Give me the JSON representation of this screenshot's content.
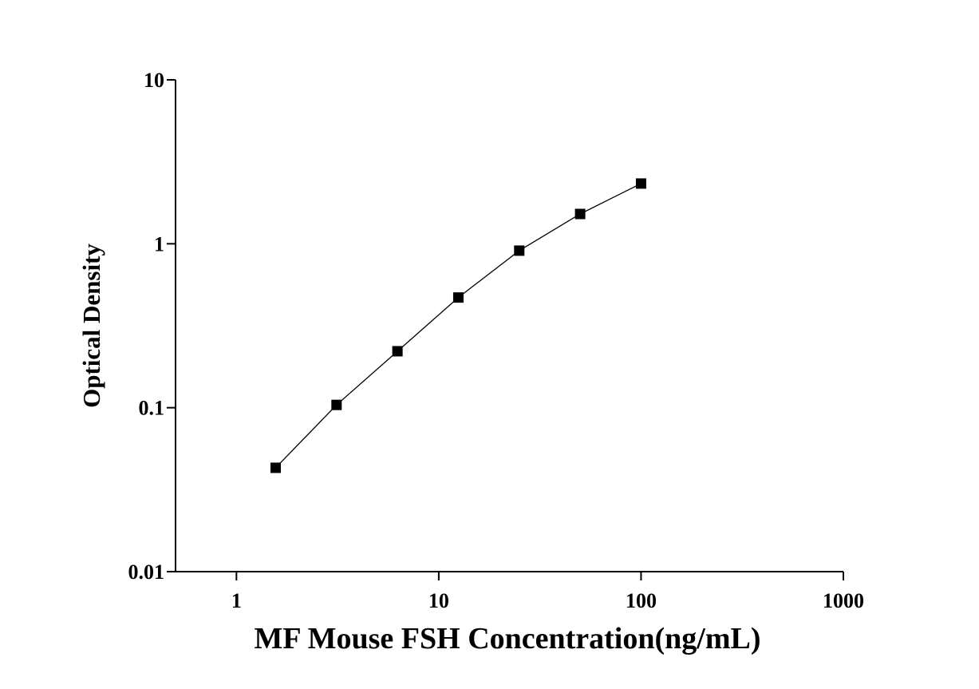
{
  "chart_data": {
    "type": "scatter-line",
    "x_label": "MF Mouse FSH Concentration(ng/mL)",
    "y_label": "Optical Density",
    "x": [
      1.5625,
      3.125,
      6.25,
      12.5,
      25,
      50,
      100
    ],
    "series": [
      {
        "values": [
          0.043,
          0.104,
          0.221,
          0.47,
          0.908,
          1.52,
          2.33
        ],
        "color": "#000000"
      }
    ],
    "xscale": "log",
    "yscale": "log",
    "xlim": [
      0.5,
      1000
    ],
    "ylim": [
      0.01,
      10
    ],
    "xticks": [
      1,
      10,
      100,
      1000
    ],
    "yticks": [
      0.01,
      0.1,
      1,
      10
    ]
  }
}
